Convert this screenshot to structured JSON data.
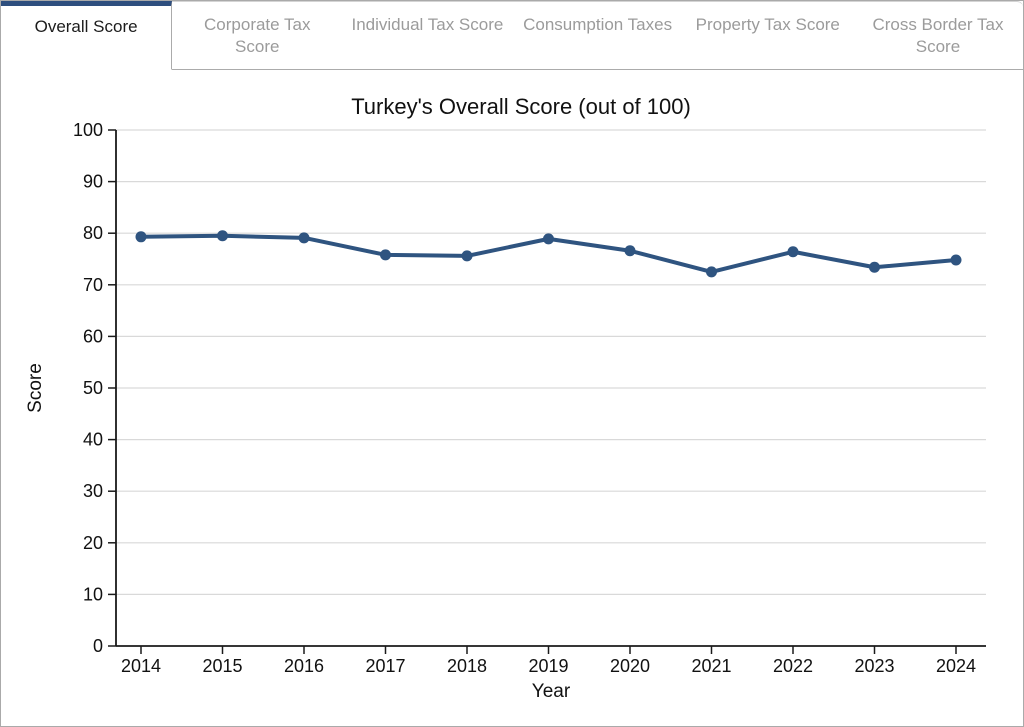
{
  "tabs": {
    "items": [
      {
        "label": "Overall Score",
        "active": true
      },
      {
        "label": "Corporate Tax Score",
        "active": false
      },
      {
        "label": "Individual Tax Score",
        "active": false
      },
      {
        "label": "Consumption Taxes",
        "active": false
      },
      {
        "label": "Property Tax Score",
        "active": false
      },
      {
        "label": "Cross Border Tax Score",
        "active": false
      }
    ]
  },
  "colors": {
    "accent_blue": "#2e4e7e",
    "line": "#2f5480",
    "grid": "#d9d9d9",
    "axis": "#1a1a1a",
    "title_text": "#111111",
    "tick_text": "#111111"
  },
  "chart_data": {
    "type": "line",
    "title": "Turkey's Overall Score (out of 100)",
    "xlabel": "Year",
    "ylabel": "Score",
    "x": [
      2014,
      2015,
      2016,
      2017,
      2018,
      2019,
      2020,
      2021,
      2022,
      2023,
      2024
    ],
    "series": [
      {
        "name": "Overall Score",
        "values": [
          79.3,
          79.5,
          79.1,
          75.8,
          75.6,
          78.9,
          76.6,
          72.5,
          76.4,
          73.4,
          74.8
        ]
      }
    ],
    "ylim": [
      0,
      100
    ],
    "ytick_step": 10,
    "grid": true,
    "legend_position": "none"
  }
}
